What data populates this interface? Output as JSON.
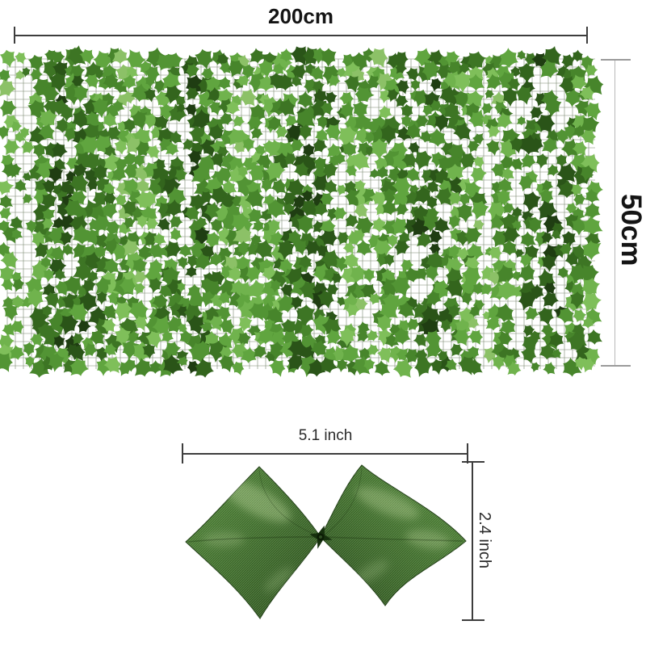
{
  "diagram": {
    "panel_width_label": "200cm",
    "panel_height_label": "50cm",
    "leaf_width_label": "5.1 inch",
    "leaf_height_label": "2.4 inch"
  },
  "hedge": {
    "background": "#ffffff",
    "grid_color": "#4d5f3e",
    "palette": [
      "#1f3d12",
      "#2a5418",
      "#33651d",
      "#3d7524",
      "#47852b",
      "#529434",
      "#60a53f",
      "#70b34d",
      "#7fbf5a",
      "#8cc167"
    ]
  },
  "closeup": {
    "base_light": "#53893a",
    "base_mid": "#3e6c2a",
    "base_dark": "#2b4f1c",
    "edge": "#1f3d14",
    "highlight": "#9dbd7e",
    "clip_color": "#16300e"
  }
}
